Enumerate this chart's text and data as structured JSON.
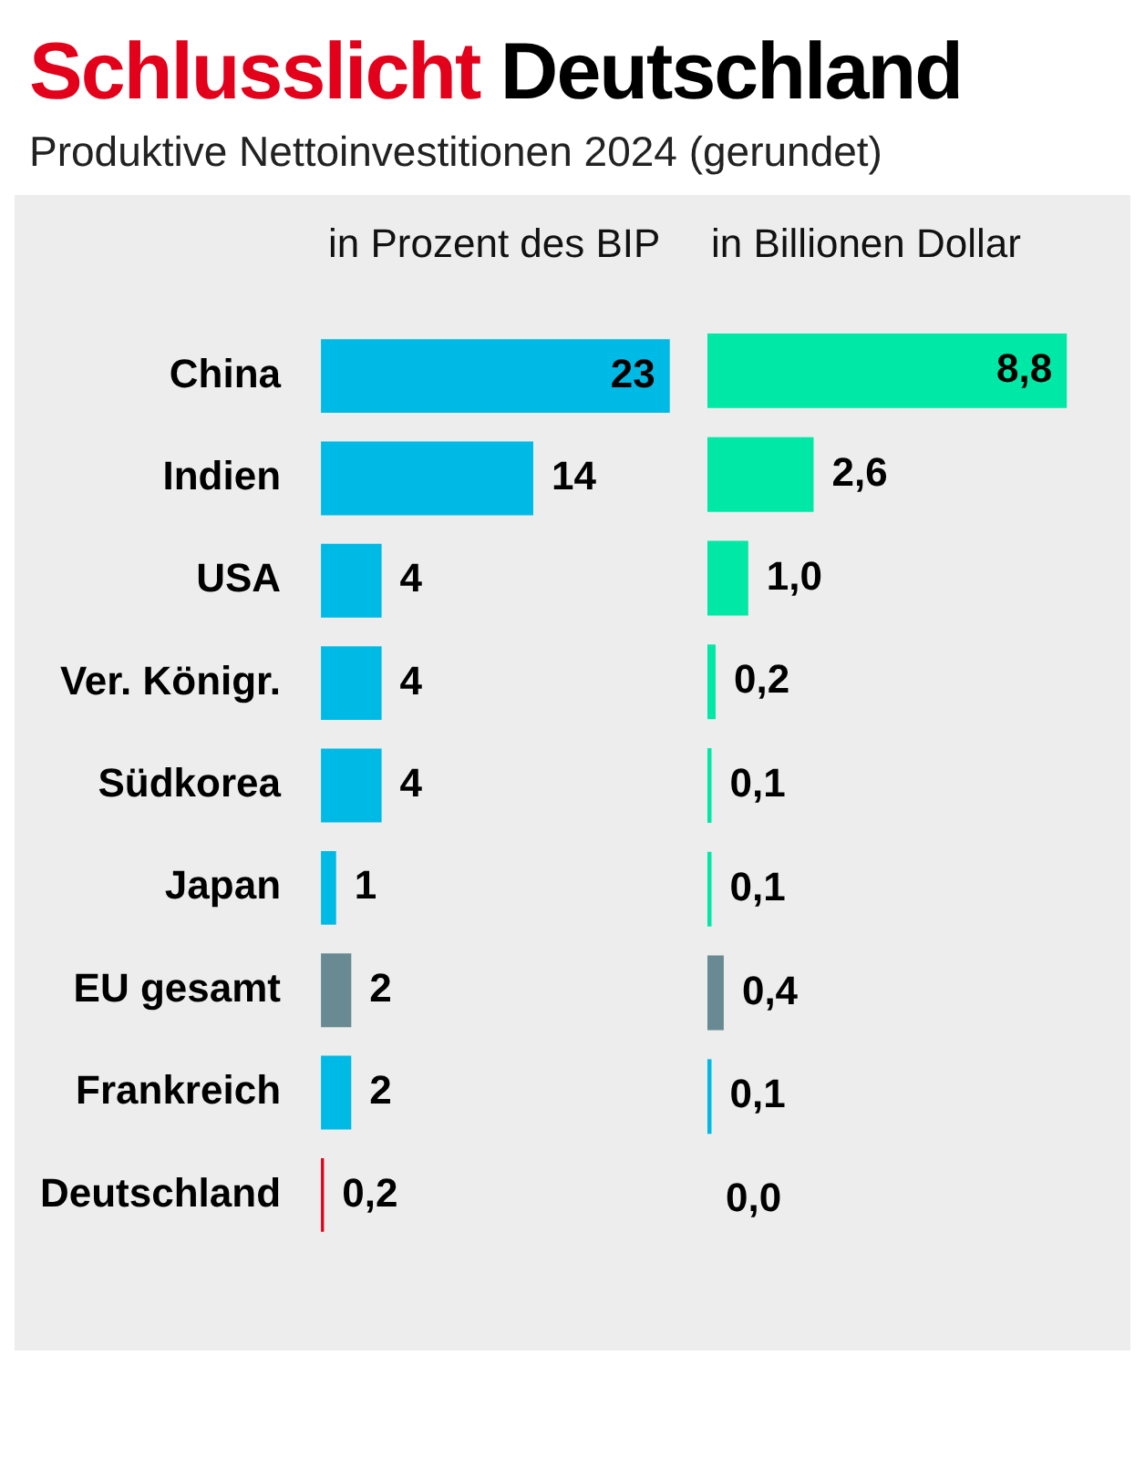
{
  "chart_data": [
    {
      "type": "bar",
      "orientation": "horizontal",
      "title": "Schlusslicht Deutschland",
      "subtitle": "Produktive Nettoinvestitionen 2024 (gerundet)",
      "xlabel": "in Prozent des BIP",
      "categories": [
        "China",
        "Indien",
        "USA",
        "Ver. Königr.",
        "Südkorea",
        "Japan",
        "EU gesamt",
        "Frankreich",
        "Deutschland"
      ],
      "values": [
        23,
        14,
        4,
        4,
        4,
        1,
        2,
        2,
        0.2
      ],
      "colors": [
        "#00bae6",
        "#00bae6",
        "#00bae6",
        "#00bae6",
        "#00bae6",
        "#00bae6",
        "#698a93",
        "#00bae6",
        "#e2001a"
      ],
      "value_labels": [
        "23",
        "14",
        "4",
        "4",
        "4",
        "1",
        "2",
        "2",
        "0,2"
      ]
    },
    {
      "type": "bar",
      "orientation": "horizontal",
      "xlabel": "in Billionen Dollar",
      "categories": [
        null,
        null,
        null,
        null,
        null,
        null,
        null,
        null,
        null
      ],
      "values": [
        8.8,
        2.6,
        1.0,
        0.2,
        0.1,
        0.1,
        0.4,
        0.1,
        0.0
      ],
      "colors": [
        "#00e8a6",
        "#00e8a6",
        "#00e8a6",
        "#00e8a6",
        "#00e8a6",
        "#00e8a6",
        "#698a93",
        "#00bae6",
        "#e2001a"
      ],
      "value_labels": [
        "8,8",
        "2,6",
        "1,0",
        "0,2",
        "0,1",
        "0,1",
        "0,4",
        "0,1",
        "0,0"
      ]
    }
  ]
}
